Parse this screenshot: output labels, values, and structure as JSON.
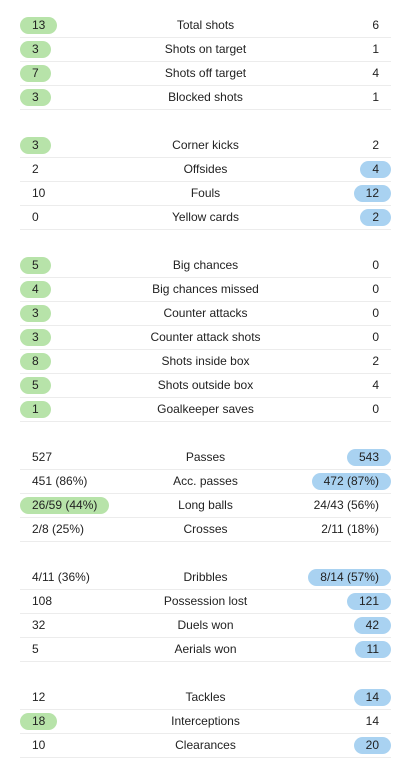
{
  "colors": {
    "home_highlight": "#b7e3a9",
    "away_highlight": "#a9d2f1",
    "divider": "#ececec"
  },
  "groups": [
    [
      {
        "label": "Total shots",
        "home": "13",
        "away": "6",
        "hl": "home"
      },
      {
        "label": "Shots on target",
        "home": "3",
        "away": "1",
        "hl": "home"
      },
      {
        "label": "Shots off target",
        "home": "7",
        "away": "4",
        "hl": "home"
      },
      {
        "label": "Blocked shots",
        "home": "3",
        "away": "1",
        "hl": "home"
      }
    ],
    [
      {
        "label": "Corner kicks",
        "home": "3",
        "away": "2",
        "hl": "home"
      },
      {
        "label": "Offsides",
        "home": "2",
        "away": "4",
        "hl": "away"
      },
      {
        "label": "Fouls",
        "home": "10",
        "away": "12",
        "hl": "away"
      },
      {
        "label": "Yellow cards",
        "home": "0",
        "away": "2",
        "hl": "away"
      }
    ],
    [
      {
        "label": "Big chances",
        "home": "5",
        "away": "0",
        "hl": "home"
      },
      {
        "label": "Big chances missed",
        "home": "4",
        "away": "0",
        "hl": "home"
      },
      {
        "label": "Counter attacks",
        "home": "3",
        "away": "0",
        "hl": "home"
      },
      {
        "label": "Counter attack shots",
        "home": "3",
        "away": "0",
        "hl": "home"
      },
      {
        "label": "Shots inside box",
        "home": "8",
        "away": "2",
        "hl": "home"
      },
      {
        "label": "Shots outside box",
        "home": "5",
        "away": "4",
        "hl": "home"
      },
      {
        "label": "Goalkeeper saves",
        "home": "1",
        "away": "0",
        "hl": "home"
      }
    ],
    [
      {
        "label": "Passes",
        "home": "527",
        "away": "543",
        "hl": "away"
      },
      {
        "label": "Acc. passes",
        "home": "451 (86%)",
        "away": "472 (87%)",
        "hl": "away"
      },
      {
        "label": "Long balls",
        "home": "26/59 (44%)",
        "away": "24/43 (56%)",
        "hl": "home"
      },
      {
        "label": "Crosses",
        "home": "2/8 (25%)",
        "away": "2/11 (18%)",
        "hl": "none"
      }
    ],
    [
      {
        "label": "Dribbles",
        "home": "4/11 (36%)",
        "away": "8/14 (57%)",
        "hl": "away"
      },
      {
        "label": "Possession lost",
        "home": "108",
        "away": "121",
        "hl": "away"
      },
      {
        "label": "Duels won",
        "home": "32",
        "away": "42",
        "hl": "away"
      },
      {
        "label": "Aerials won",
        "home": "5",
        "away": "11",
        "hl": "away"
      }
    ],
    [
      {
        "label": "Tackles",
        "home": "12",
        "away": "14",
        "hl": "away"
      },
      {
        "label": "Interceptions",
        "home": "18",
        "away": "14",
        "hl": "home"
      },
      {
        "label": "Clearances",
        "home": "10",
        "away": "20",
        "hl": "away"
      }
    ]
  ]
}
